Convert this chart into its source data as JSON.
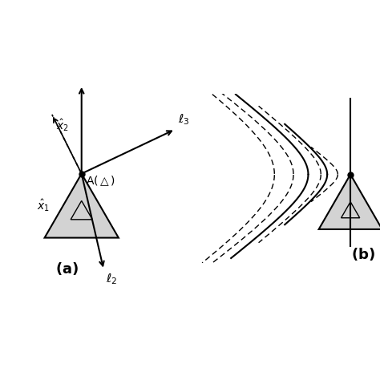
{
  "bg_color": "#ffffff",
  "fig_width": 4.74,
  "fig_height": 4.74,
  "triangle_fill": "#d3d3d3",
  "triangle_edge": "#000000",
  "lw_main": 1.5,
  "lw_thin": 1.0,
  "markersize": 5
}
